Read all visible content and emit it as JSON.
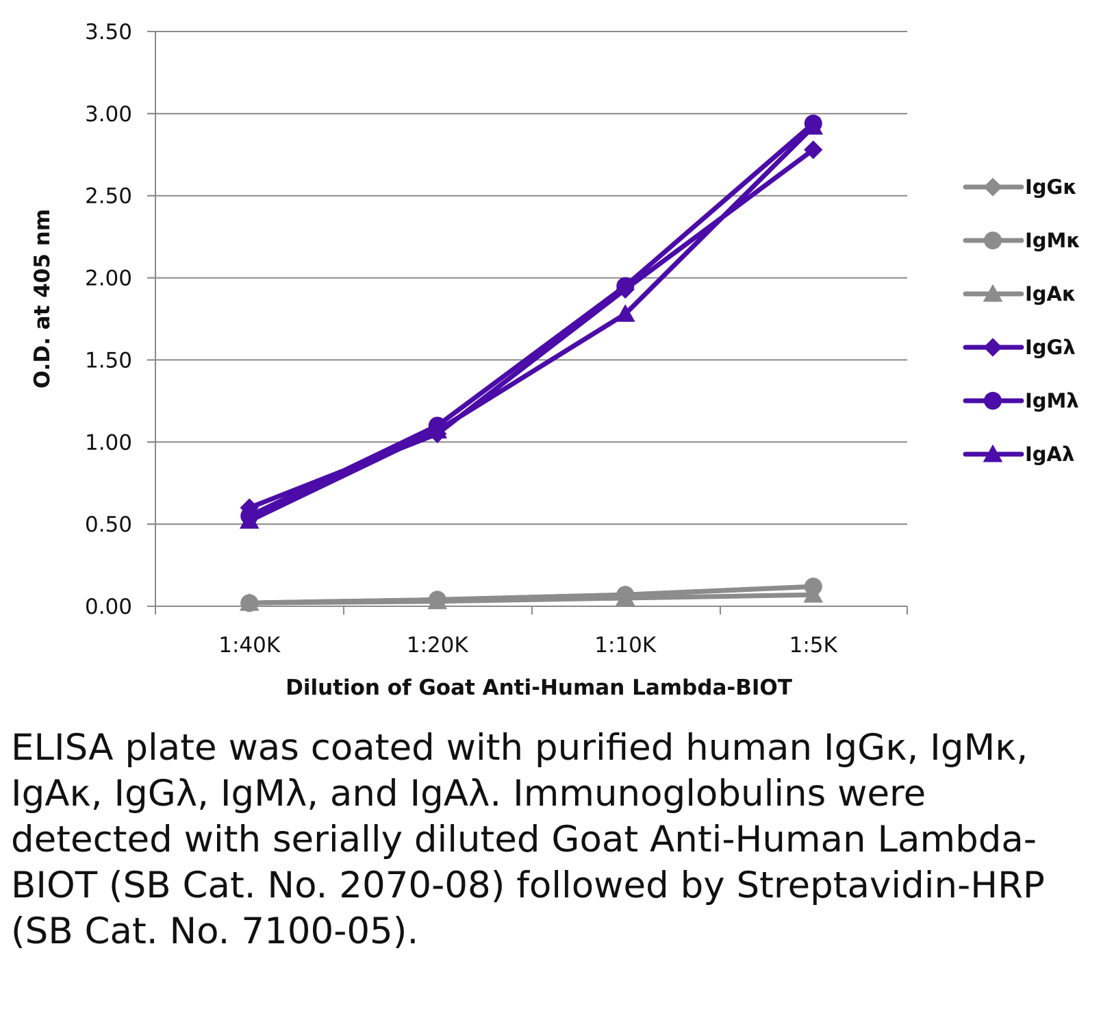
{
  "chart_data": {
    "type": "line",
    "title": "",
    "xlabel": "Dilution of Goat Anti-Human Lambda-BIOT",
    "ylabel": "O.D. at 405 nm",
    "categories": [
      "1:40K",
      "1:20K",
      "1:10K",
      "1:5K"
    ],
    "ylim": [
      0,
      3.5
    ],
    "yticks": [
      "0.00",
      "0.50",
      "1.00",
      "1.50",
      "2.00",
      "2.50",
      "3.00",
      "3.50"
    ],
    "grid": true,
    "legend_position": "right",
    "series": [
      {
        "name": "IgGκ",
        "values": [
          0.02,
          0.04,
          0.07,
          0.12
        ],
        "color": "#8c8c8c",
        "marker": "diamond"
      },
      {
        "name": "IgMκ",
        "values": [
          0.02,
          0.04,
          0.07,
          0.12
        ],
        "color": "#8c8c8c",
        "marker": "circle"
      },
      {
        "name": "IgAκ",
        "values": [
          0.02,
          0.03,
          0.05,
          0.07
        ],
        "color": "#8c8c8c",
        "marker": "triangle"
      },
      {
        "name": "IgGλ",
        "values": [
          0.6,
          1.05,
          1.93,
          2.78
        ],
        "color": "#4b0ca8",
        "marker": "diamond"
      },
      {
        "name": "IgMλ",
        "values": [
          0.55,
          1.1,
          1.95,
          2.94
        ],
        "color": "#4b0ca8",
        "marker": "circle"
      },
      {
        "name": "IgAλ",
        "values": [
          0.52,
          1.07,
          1.78,
          2.92
        ],
        "color": "#4b0ca8",
        "marker": "triangle"
      }
    ]
  },
  "caption": "ELISA plate was coated with purified human IgGκ, IgMκ, IgAκ, IgGλ, IgMλ, and IgAλ. Immunoglobulins were detected with serially diluted Goat Anti-Human Lambda-BIOT (SB Cat. No. 2070-08) followed by Streptavidin-HRP (SB Cat. No. 7100-05)."
}
